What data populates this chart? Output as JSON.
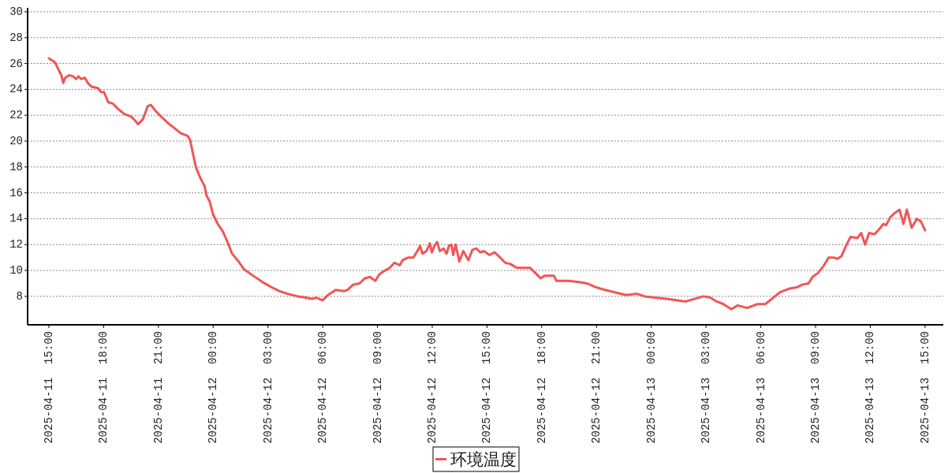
{
  "chart_data": {
    "type": "line",
    "xlim": [
      "2025-04-11T13:50",
      "2025-04-13T16:00"
    ],
    "ylim": [
      5.8,
      30.3
    ],
    "xticks": [
      {
        "value": "2025-04-11T15:00",
        "label": "2025-04-11  15:00"
      },
      {
        "value": "2025-04-11T18:00",
        "label": "2025-04-11  18:00"
      },
      {
        "value": "2025-04-11T21:00",
        "label": "2025-04-11  21:00"
      },
      {
        "value": "2025-04-12T00:00",
        "label": "2025-04-12  00:00"
      },
      {
        "value": "2025-04-12T03:00",
        "label": "2025-04-12  03:00"
      },
      {
        "value": "2025-04-12T06:00",
        "label": "2025-04-12  06:00"
      },
      {
        "value": "2025-04-12T09:00",
        "label": "2025-04-12  09:00"
      },
      {
        "value": "2025-04-12T12:00",
        "label": "2025-04-12  12:00"
      },
      {
        "value": "2025-04-12T15:00",
        "label": "2025-04-12  15:00"
      },
      {
        "value": "2025-04-12T18:00",
        "label": "2025-04-12  18:00"
      },
      {
        "value": "2025-04-12T21:00",
        "label": "2025-04-12  21:00"
      },
      {
        "value": "2025-04-13T00:00",
        "label": "2025-04-13  00:00"
      },
      {
        "value": "2025-04-13T03:00",
        "label": "2025-04-13  03:00"
      },
      {
        "value": "2025-04-13T06:00",
        "label": "2025-04-13  06:00"
      },
      {
        "value": "2025-04-13T09:00",
        "label": "2025-04-13  09:00"
      },
      {
        "value": "2025-04-13T12:00",
        "label": "2025-04-13  12:00"
      },
      {
        "value": "2025-04-13T15:00",
        "label": "2025-04-13  15:00"
      }
    ],
    "yticks": [
      8,
      10,
      12,
      14,
      16,
      18,
      20,
      22,
      24,
      26,
      28,
      30
    ],
    "grid": "y",
    "legend": "bottom",
    "line_style": "solid",
    "x": [
      "2025-04-11T15:00",
      "2025-04-11T15:20",
      "2025-04-11T15:32",
      "2025-04-11T15:41",
      "2025-04-11T15:47",
      "2025-04-11T15:54",
      "2025-04-11T16:07",
      "2025-04-11T16:20",
      "2025-04-11T16:29",
      "2025-04-11T16:37",
      "2025-04-11T16:46",
      "2025-04-11T16:58",
      "2025-04-11T17:08",
      "2025-04-11T17:20",
      "2025-04-11T17:41",
      "2025-04-11T17:51",
      "2025-04-11T18:01",
      "2025-04-11T18:15",
      "2025-04-11T18:30",
      "2025-04-11T18:47",
      "2025-04-11T19:08",
      "2025-04-11T19:30",
      "2025-04-11T19:43",
      "2025-04-11T19:53",
      "2025-04-11T20:09",
      "2025-04-11T20:25",
      "2025-04-11T20:35",
      "2025-04-11T20:52",
      "2025-04-11T21:09",
      "2025-04-11T21:31",
      "2025-04-11T21:53",
      "2025-04-11T22:14",
      "2025-04-11T22:36",
      "2025-04-11T22:44",
      "2025-04-11T22:53",
      "2025-04-11T23:03",
      "2025-04-11T23:17",
      "2025-04-11T23:32",
      "2025-04-11T23:38",
      "2025-04-11T23:49",
      "2025-04-12T00:00",
      "2025-04-12T00:15",
      "2025-04-12T00:32",
      "2025-04-12T00:47",
      "2025-04-12T01:02",
      "2025-04-12T01:20",
      "2025-04-12T01:41",
      "2025-04-12T02:11",
      "2025-04-12T02:42",
      "2025-04-12T03:12",
      "2025-04-12T03:38",
      "2025-04-12T04:04",
      "2025-04-12T04:38",
      "2025-04-12T05:04",
      "2025-04-12T05:26",
      "2025-04-12T05:38",
      "2025-04-12T06:00",
      "2025-04-12T06:17",
      "2025-04-12T06:43",
      "2025-04-12T07:09",
      "2025-04-12T07:22",
      "2025-04-12T07:40",
      "2025-04-12T08:01",
      "2025-04-12T08:19",
      "2025-04-12T08:35",
      "2025-04-12T08:53",
      "2025-04-12T09:06",
      "2025-04-12T09:25",
      "2025-04-12T09:40",
      "2025-04-12T09:56",
      "2025-04-12T10:13",
      "2025-04-12T10:23",
      "2025-04-12T10:41",
      "2025-04-12T10:58",
      "2025-04-12T11:11",
      "2025-04-12T11:20",
      "2025-04-12T11:28",
      "2025-04-12T11:41",
      "2025-04-12T11:52",
      "2025-04-12T11:59",
      "2025-04-12T12:07",
      "2025-04-12T12:16",
      "2025-04-12T12:25",
      "2025-04-12T12:37",
      "2025-04-12T12:47",
      "2025-04-12T12:55",
      "2025-04-12T13:03",
      "2025-04-12T13:09",
      "2025-04-12T13:17",
      "2025-04-12T13:29",
      "2025-04-12T13:42",
      "2025-04-12T13:59",
      "2025-04-12T14:12",
      "2025-04-12T14:25",
      "2025-04-12T14:38",
      "2025-04-12T14:50",
      "2025-04-12T15:08",
      "2025-04-12T15:25",
      "2025-04-12T15:43",
      "2025-04-12T16:00",
      "2025-04-12T16:17",
      "2025-04-12T16:38",
      "2025-04-12T17:00",
      "2025-04-12T17:22",
      "2025-04-12T17:39",
      "2025-04-12T17:56",
      "2025-04-12T18:10",
      "2025-04-12T18:40",
      "2025-04-12T18:48",
      "2025-04-12T19:28",
      "2025-04-12T20:02",
      "2025-04-12T20:28",
      "2025-04-12T20:58",
      "2025-04-12T21:28",
      "2025-04-12T22:02",
      "2025-04-12T22:37",
      "2025-04-12T23:12",
      "2025-04-12T23:38",
      "2025-04-13T00:12",
      "2025-04-13T00:55",
      "2025-04-13T01:52",
      "2025-04-13T02:22",
      "2025-04-13T02:52",
      "2025-04-13T03:14",
      "2025-04-13T03:35",
      "2025-04-13T03:57",
      "2025-04-13T04:23",
      "2025-04-13T04:44",
      "2025-04-13T05:15",
      "2025-04-13T05:49",
      "2025-04-13T06:15",
      "2025-04-13T06:41",
      "2025-04-13T07:02",
      "2025-04-13T07:34",
      "2025-04-13T07:59",
      "2025-04-13T08:16",
      "2025-04-13T08:37",
      "2025-04-13T08:50",
      "2025-04-13T09:08",
      "2025-04-13T09:25",
      "2025-04-13T09:43",
      "2025-04-13T10:00",
      "2025-04-13T10:12",
      "2025-04-13T10:25",
      "2025-04-13T10:38",
      "2025-04-13T10:55",
      "2025-04-13T11:17",
      "2025-04-13T11:30",
      "2025-04-13T11:43",
      "2025-04-13T11:56",
      "2025-04-13T12:13",
      "2025-04-13T12:26",
      "2025-04-13T12:43",
      "2025-04-13T12:52",
      "2025-04-13T13:05",
      "2025-04-13T13:18",
      "2025-04-13T13:36",
      "2025-04-13T13:49",
      "2025-04-13T14:00",
      "2025-04-13T14:16",
      "2025-04-13T14:33",
      "2025-04-13T14:46",
      "2025-04-13T15:00"
    ],
    "series": [
      {
        "name": "环境温度",
        "color": "#f05656",
        "values": [
          26.4,
          26.1,
          25.5,
          25.1,
          24.5,
          24.9,
          25.1,
          25.0,
          24.8,
          25.0,
          24.8,
          24.9,
          24.5,
          24.2,
          24.1,
          23.8,
          23.8,
          23.0,
          22.9,
          22.5,
          22.1,
          21.9,
          21.6,
          21.3,
          21.7,
          22.7,
          22.8,
          22.3,
          21.9,
          21.4,
          21.0,
          20.6,
          20.4,
          20.1,
          19.1,
          18.0,
          17.2,
          16.5,
          15.8,
          15.3,
          14.3,
          13.6,
          13.0,
          12.2,
          11.3,
          10.8,
          10.1,
          9.6,
          9.1,
          8.7,
          8.4,
          8.2,
          8.0,
          7.9,
          7.8,
          7.9,
          7.7,
          8.1,
          8.5,
          8.4,
          8.5,
          8.9,
          9.0,
          9.4,
          9.5,
          9.2,
          9.7,
          10.0,
          10.2,
          10.6,
          10.4,
          10.8,
          11.0,
          11.0,
          11.5,
          11.9,
          11.3,
          11.5,
          12.1,
          11.4,
          11.9,
          12.2,
          11.5,
          11.7,
          11.3,
          11.9,
          12.0,
          11.2,
          12.0,
          10.7,
          11.5,
          10.8,
          11.6,
          11.7,
          11.4,
          11.5,
          11.2,
          11.4,
          11.0,
          10.6,
          10.5,
          10.2,
          10.2,
          10.2,
          9.8,
          9.4,
          9.6,
          9.6,
          9.2,
          9.2,
          9.1,
          9.0,
          8.7,
          8.5,
          8.3,
          8.1,
          8.2,
          8.0,
          7.9,
          7.8,
          7.6,
          7.8,
          8.0,
          7.9,
          7.6,
          7.4,
          7.0,
          7.3,
          7.1,
          7.4,
          7.4,
          7.9,
          8.3,
          8.6,
          8.7,
          8.9,
          9.0,
          9.5,
          9.8,
          10.3,
          11.0,
          11.0,
          10.9,
          11.1,
          11.8,
          12.6,
          12.5,
          12.9,
          12.0,
          12.9,
          12.8,
          13.1,
          13.6,
          13.5,
          14.1,
          14.4,
          14.7,
          13.6,
          14.7,
          13.3,
          14.0,
          13.8,
          13.1
        ]
      }
    ]
  }
}
